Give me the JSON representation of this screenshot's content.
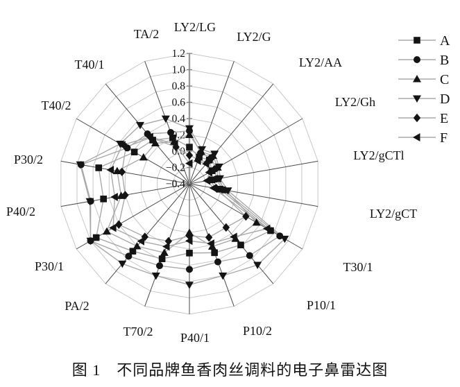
{
  "figure": {
    "caption": "图 1　不同品牌鱼香肉丝调料的电子鼻雷达图"
  },
  "chart_data": {
    "type": "radar",
    "title": "不同品牌鱼香肉丝调料的电子鼻雷达图",
    "figure_label": "图 1",
    "categories": [
      "LY2/LG",
      "LY2/G",
      "LY2/AA",
      "LY2/Gh",
      "LY2/gCTl",
      "LY2/gCT",
      "T30/1",
      "P10/1",
      "P10/2",
      "P40/1",
      "T70/2",
      "PA/2",
      "P30/1",
      "P40/2",
      "P30/2",
      "T40/2",
      "T40/1",
      "TA/2"
    ],
    "radial_axis": {
      "min": -0.4,
      "max": 1.2,
      "step": 0.2,
      "tick_labels": [
        "1.2",
        "1.0",
        "0.8",
        "0.6",
        "0.4",
        "0.2",
        "0.0",
        "−0.2",
        "−0.4"
      ]
    },
    "grid": {
      "rings": 8,
      "shape": "polygon",
      "visible": true
    },
    "legend": {
      "position": "top-right",
      "entries": [
        "A",
        "B",
        "C",
        "D",
        "E",
        "F"
      ]
    },
    "series": [
      {
        "name": "A",
        "marker": "square",
        "values": [
          0.05,
          -0.05,
          -0.02,
          -0.08,
          -0.12,
          -0.02,
          0.75,
          0.58,
          0.5,
          0.45,
          0.58,
          0.68,
          0.92,
          0.67,
          0.73,
          0.38,
          0.3,
          0.2
        ]
      },
      {
        "name": "B",
        "marker": "circle",
        "values": [
          0.25,
          0.0,
          0.02,
          -0.03,
          -0.07,
          0.02,
          0.88,
          0.75,
          0.62,
          0.65,
          0.67,
          0.76,
          1.0,
          0.83,
          0.95,
          0.48,
          0.4,
          0.27
        ]
      },
      {
        "name": "C",
        "marker": "triangle-up",
        "values": [
          0.2,
          0.02,
          0.05,
          0.0,
          -0.05,
          0.05,
          0.55,
          0.48,
          0.42,
          0.2,
          0.5,
          0.6,
          0.77,
          0.45,
          0.5,
          0.25,
          0.25,
          0.15
        ]
      },
      {
        "name": "D",
        "marker": "triangle-down",
        "values": [
          0.28,
          0.05,
          0.08,
          0.02,
          -0.02,
          0.08,
          0.95,
          0.9,
          0.8,
          0.84,
          0.8,
          0.88,
          1.0,
          0.84,
          0.96,
          0.58,
          0.54,
          0.45
        ]
      },
      {
        "name": "E",
        "marker": "diamond",
        "values": [
          -0.05,
          -0.08,
          -0.06,
          -0.1,
          -0.15,
          -0.06,
          0.4,
          0.3,
          0.3,
          0.24,
          0.35,
          0.45,
          0.6,
          0.4,
          0.44,
          0.5,
          0.34,
          0.08
        ]
      },
      {
        "name": "F",
        "marker": "triangle-left",
        "values": [
          -0.15,
          -0.1,
          -0.08,
          -0.12,
          -0.18,
          -0.1,
          0.7,
          0.45,
          0.38,
          0.3,
          0.42,
          0.52,
          0.68,
          0.53,
          0.58,
          0.55,
          0.35,
          0.12
        ]
      }
    ],
    "colors": {
      "marker": "#141414",
      "series_line": "#a9a9a9",
      "ring": "#c6c6c6",
      "spoke": "#4a4a4a",
      "main_axis": "#9a9a9a",
      "text": "#111111"
    }
  }
}
